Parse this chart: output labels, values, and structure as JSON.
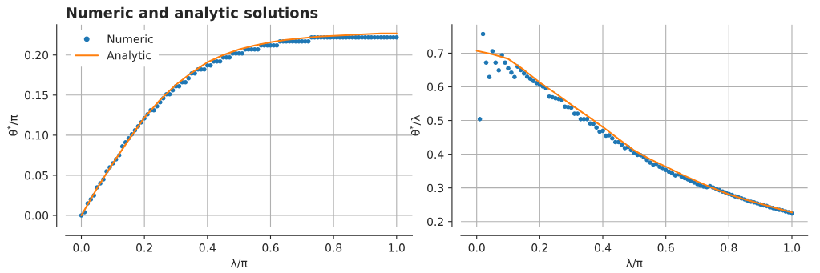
{
  "chart_data": [
    {
      "type": "scatter",
      "title": "Numeric and analytic solutions",
      "xlabel": "λ/π",
      "ylabel": "θ$^{*}$/π",
      "xlim": [
        -0.05,
        1.05
      ],
      "ylim": [
        -0.014,
        0.238
      ],
      "xticks": [
        {
          "value": 0,
          "label": "0.0"
        },
        {
          "value": 0.2,
          "label": "0.2"
        },
        {
          "value": 0.4,
          "label": "0.4"
        },
        {
          "value": 0.6,
          "label": "0.6"
        },
        {
          "value": 0.8,
          "label": "0.8"
        },
        {
          "value": 1,
          "label": "1.0"
        }
      ],
      "yticks": [
        {
          "value": 0,
          "label": "0.00"
        },
        {
          "value": 0.05,
          "label": "0.05"
        },
        {
          "value": 0.1,
          "label": "0.10"
        },
        {
          "value": 0.15,
          "label": "0.15"
        },
        {
          "value": 0.2,
          "label": "0.20"
        }
      ],
      "grid": true,
      "legend": "top left",
      "series": [
        {
          "name": "Numeric",
          "marker": "circle",
          "color": "#1f77b4",
          "x": [
            0,
            0.01,
            0.02,
            0.03,
            0.04,
            0.05,
            0.06,
            0.07,
            0.08,
            0.09,
            0.1,
            0.11,
            0.12,
            0.13,
            0.14,
            0.15,
            0.16,
            0.17,
            0.18,
            0.19,
            0.2,
            0.21,
            0.22,
            0.23,
            0.24,
            0.25,
            0.26,
            0.27,
            0.28,
            0.29,
            0.3,
            0.31,
            0.32,
            0.33,
            0.34,
            0.35,
            0.36,
            0.37,
            0.38,
            0.39,
            0.4,
            0.41,
            0.42,
            0.43,
            0.44,
            0.45,
            0.46,
            0.47,
            0.48,
            0.49,
            0.5,
            0.51,
            0.52,
            0.53,
            0.54,
            0.55,
            0.56,
            0.57,
            0.58,
            0.59,
            0.6,
            0.61,
            0.62,
            0.63,
            0.64,
            0.65,
            0.66,
            0.67,
            0.68,
            0.69,
            0.7,
            0.71,
            0.72,
            0.73,
            0.74,
            0.75,
            0.76,
            0.77,
            0.78,
            0.79,
            0.8,
            0.81,
            0.82,
            0.83,
            0.84,
            0.85,
            0.86,
            0.87,
            0.88,
            0.89,
            0.9,
            0.91,
            0.92,
            0.93,
            0.94,
            0.95,
            0.96,
            0.97,
            0.98,
            0.99,
            1
          ],
          "values": [
            0,
            0.004,
            0.015,
            0.02,
            0.025,
            0.035,
            0.04,
            0.045,
            0.055,
            0.06,
            0.065,
            0.07,
            0.075,
            0.086,
            0.091,
            0.096,
            0.101,
            0.106,
            0.111,
            0.116,
            0.121,
            0.126,
            0.131,
            0.131,
            0.136,
            0.141,
            0.146,
            0.151,
            0.151,
            0.156,
            0.161,
            0.161,
            0.166,
            0.166,
            0.171,
            0.177,
            0.177,
            0.182,
            0.182,
            0.182,
            0.187,
            0.187,
            0.192,
            0.192,
            0.192,
            0.197,
            0.197,
            0.197,
            0.202,
            0.202,
            0.202,
            0.202,
            0.207,
            0.207,
            0.207,
            0.207,
            0.207,
            0.212,
            0.212,
            0.212,
            0.212,
            0.212,
            0.212,
            0.217,
            0.217,
            0.217,
            0.217,
            0.217,
            0.217,
            0.217,
            0.217,
            0.217,
            0.217,
            0.222,
            0.222,
            0.222,
            0.222,
            0.222,
            0.222,
            0.222,
            0.222,
            0.222,
            0.222,
            0.222,
            0.222,
            0.222,
            0.222,
            0.222,
            0.222,
            0.222,
            0.222,
            0.222,
            0.222,
            0.222,
            0.222,
            0.222,
            0.222,
            0.222,
            0.222,
            0.222,
            0.222
          ]
        },
        {
          "name": "Analytic",
          "type": "line",
          "color": "#ff7f0e",
          "x": [
            0,
            0.05,
            0.1,
            0.15,
            0.2,
            0.25,
            0.3,
            0.35,
            0.4,
            0.45,
            0.5,
            0.55,
            0.6,
            0.65,
            0.7,
            0.75,
            0.8,
            0.85,
            0.9,
            0.95,
            1
          ],
          "values": [
            0,
            0.034,
            0.065,
            0.094,
            0.122,
            0.144,
            0.163,
            0.178,
            0.191,
            0.2,
            0.207,
            0.212,
            0.216,
            0.219,
            0.221,
            0.223,
            0.224,
            0.225,
            0.226,
            0.227,
            0.227
          ]
        }
      ]
    },
    {
      "type": "scatter",
      "xlabel": "λ/π",
      "ylabel": "θ$^{*}$/λ",
      "xlim": [
        -0.05,
        1.05
      ],
      "ylim": [
        0.185,
        0.785
      ],
      "xticks": [
        {
          "value": 0,
          "label": "0.0"
        },
        {
          "value": 0.2,
          "label": "0.2"
        },
        {
          "value": 0.4,
          "label": "0.4"
        },
        {
          "value": 0.6,
          "label": "0.6"
        },
        {
          "value": 0.8,
          "label": "0.8"
        },
        {
          "value": 1,
          "label": "1.0"
        }
      ],
      "yticks": [
        0.2,
        0.3,
        0.4,
        0.5,
        0.6,
        0.7
      ],
      "grid": true,
      "series": [
        {
          "marker": "circle",
          "color": "#1f77b4",
          "x": [
            0.01,
            0.02,
            0.03,
            0.04,
            0.05,
            0.06,
            0.07,
            0.08,
            0.09,
            0.1,
            0.11,
            0.12,
            0.13,
            0.14,
            0.15,
            0.16,
            0.17,
            0.18,
            0.19,
            0.2,
            0.21,
            0.22,
            0.23,
            0.24,
            0.25,
            0.26,
            0.27,
            0.28,
            0.29,
            0.3,
            0.31,
            0.32,
            0.33,
            0.34,
            0.35,
            0.36,
            0.37,
            0.38,
            0.39,
            0.4,
            0.41,
            0.42,
            0.43,
            0.44,
            0.45,
            0.46,
            0.47,
            0.48,
            0.49,
            0.5,
            0.51,
            0.52,
            0.53,
            0.54,
            0.55,
            0.56,
            0.57,
            0.58,
            0.59,
            0.6,
            0.61,
            0.62,
            0.63,
            0.64,
            0.65,
            0.66,
            0.67,
            0.68,
            0.69,
            0.7,
            0.71,
            0.72,
            0.73,
            0.74,
            0.75,
            0.76,
            0.77,
            0.78,
            0.79,
            0.8,
            0.81,
            0.82,
            0.83,
            0.84,
            0.85,
            0.86,
            0.87,
            0.88,
            0.89,
            0.9,
            0.91,
            0.92,
            0.93,
            0.94,
            0.95,
            0.96,
            0.97,
            0.98,
            0.99,
            1
          ],
          "values": [
            0.504,
            0.757,
            0.672,
            0.629,
            0.706,
            0.672,
            0.649,
            0.694,
            0.672,
            0.655,
            0.642,
            0.629,
            0.66,
            0.65,
            0.64,
            0.63,
            0.624,
            0.617,
            0.611,
            0.606,
            0.601,
            0.596,
            0.571,
            0.569,
            0.566,
            0.564,
            0.561,
            0.541,
            0.54,
            0.538,
            0.52,
            0.52,
            0.504,
            0.504,
            0.504,
            0.491,
            0.49,
            0.479,
            0.467,
            0.469,
            0.455,
            0.456,
            0.447,
            0.436,
            0.436,
            0.428,
            0.418,
            0.421,
            0.412,
            0.403,
            0.398,
            0.397,
            0.391,
            0.383,
            0.375,
            0.369,
            0.371,
            0.363,
            0.359,
            0.353,
            0.348,
            0.343,
            0.337,
            0.34,
            0.333,
            0.329,
            0.325,
            0.32,
            0.316,
            0.311,
            0.307,
            0.304,
            0.302,
            0.305,
            0.301,
            0.297,
            0.293,
            0.289,
            0.286,
            0.282,
            0.279,
            0.275,
            0.272,
            0.269,
            0.266,
            0.262,
            0.259,
            0.257,
            0.254,
            0.251,
            0.248,
            0.246,
            0.242,
            0.24,
            0.238,
            0.235,
            0.233,
            0.23,
            0.228,
            0.224
          ]
        },
        {
          "type": "line",
          "color": "#ff7f0e",
          "x": [
            0,
            0.05,
            0.1,
            0.15,
            0.2,
            0.25,
            0.3,
            0.35,
            0.4,
            0.45,
            0.5,
            0.55,
            0.6,
            0.65,
            0.7,
            0.75,
            0.8,
            0.85,
            0.9,
            0.95,
            1
          ],
          "values": [
            0.707,
            0.697,
            0.683,
            0.65,
            0.613,
            0.581,
            0.547,
            0.514,
            0.481,
            0.445,
            0.411,
            0.385,
            0.363,
            0.34,
            0.319,
            0.299,
            0.281,
            0.266,
            0.253,
            0.24,
            0.227
          ]
        }
      ]
    }
  ]
}
